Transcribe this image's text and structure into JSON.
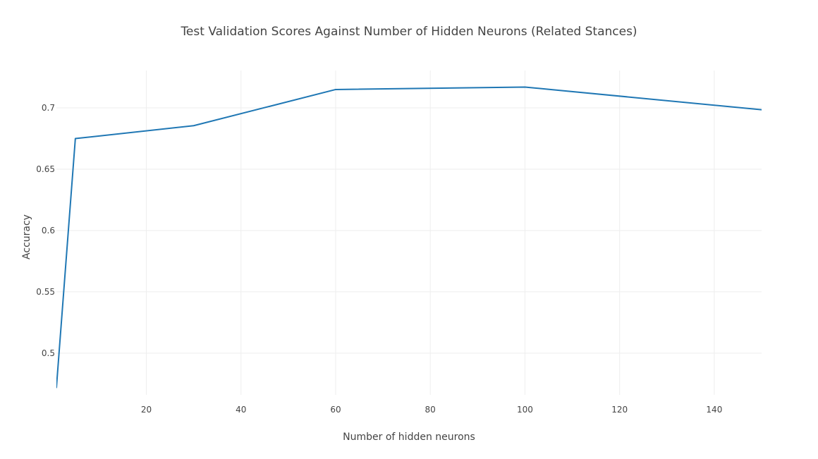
{
  "chart_data": {
    "type": "line",
    "title": "Test Validation Scores Against Number of Hidden Neurons (Related Stances)",
    "xlabel": "Number of hidden neurons",
    "ylabel": "Accuracy",
    "xlim": [
      1,
      150
    ],
    "ylim": [
      0.466,
      0.7305
    ],
    "x_ticks": [
      20,
      40,
      60,
      80,
      100,
      120,
      140
    ],
    "x_tick_labels": [
      "20",
      "40",
      "60",
      "80",
      "100",
      "120",
      "140"
    ],
    "y_ticks": [
      0.5,
      0.55,
      0.6,
      0.65,
      0.7
    ],
    "y_tick_labels": [
      "0.5",
      "0.55",
      "0.6",
      "0.65",
      "0.7"
    ],
    "grid": true,
    "series": [
      {
        "x": [
          1,
          5,
          30,
          60,
          100,
          150
        ],
        "y": [
          0.472,
          0.675,
          0.6855,
          0.715,
          0.717,
          0.6985
        ],
        "color": "#1f77b4"
      }
    ]
  }
}
